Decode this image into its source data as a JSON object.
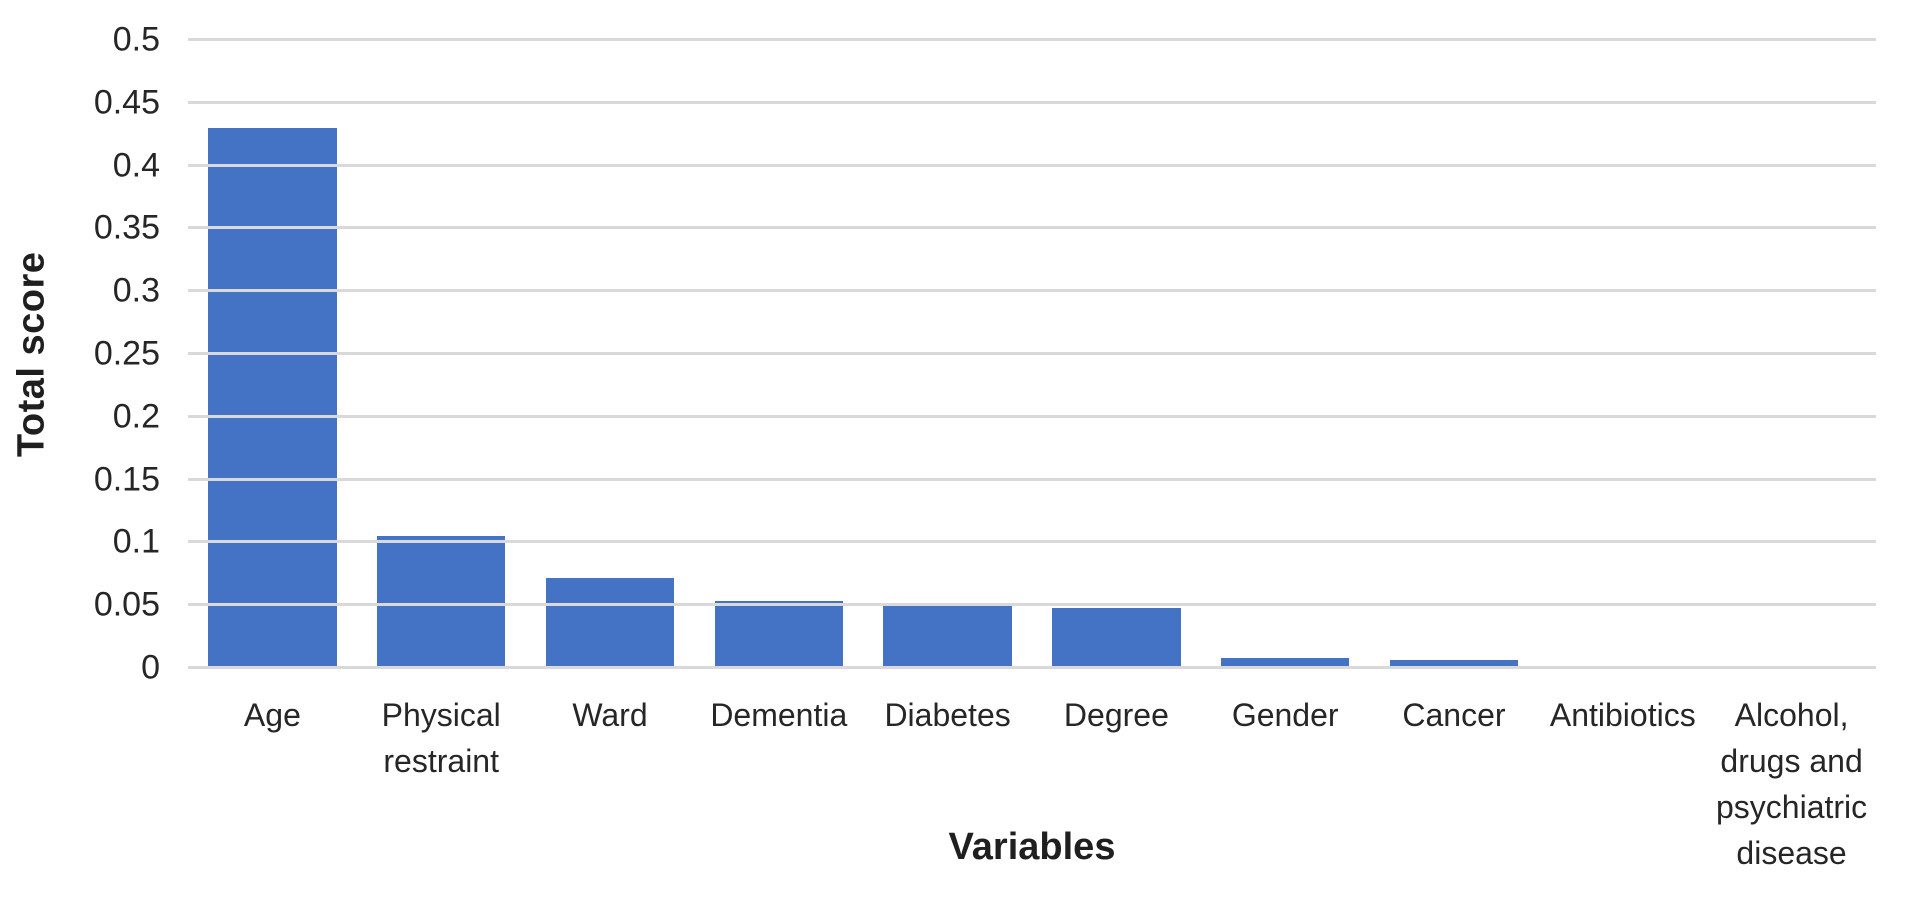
{
  "chart_data": {
    "type": "bar",
    "title": "",
    "xlabel": "Variables",
    "ylabel": "Total score",
    "categories": [
      "Age",
      "Physical restraint",
      "Ward",
      "Dementia",
      "Diabetes",
      "Degree",
      "Gender",
      "Cancer",
      "Antibiotics",
      "Alcohol, drugs and psychiatric disease"
    ],
    "values": [
      0.43,
      0.105,
      0.072,
      0.053,
      0.051,
      0.048,
      0.008,
      0.006,
      0,
      0
    ],
    "ylim": [
      0,
      0.5
    ],
    "ytick_step": 0.05,
    "yticks": [
      "0",
      "0.05",
      "0.1",
      "0.15",
      "0.2",
      "0.25",
      "0.3",
      "0.35",
      "0.4",
      "0.45",
      "0.5"
    ],
    "grid": true,
    "legend": false,
    "bar_color": "#4472c4",
    "gridline_color": "#d9d9d9",
    "text_color": "#262626"
  }
}
